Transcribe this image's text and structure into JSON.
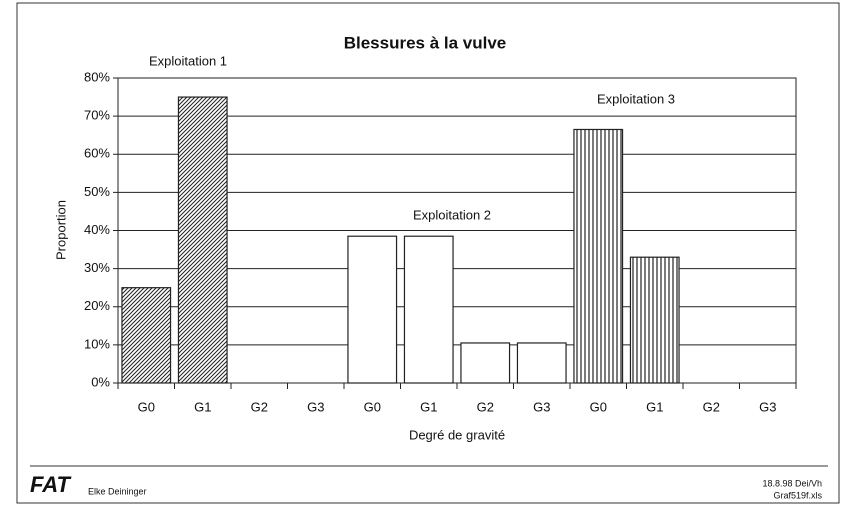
{
  "chart_data": {
    "type": "bar",
    "title": "Blessures à la vulve",
    "y_label": "Proportion",
    "x_label": "Degré de gravité",
    "ylim": [
      0,
      80
    ],
    "yticks": [
      {
        "value": 0,
        "label": "0%"
      },
      {
        "value": 10,
        "label": "10%"
      },
      {
        "value": 20,
        "label": "20%"
      },
      {
        "value": 30,
        "label": "30%"
      },
      {
        "value": 40,
        "label": "40%"
      },
      {
        "value": 50,
        "label": "50%"
      },
      {
        "value": 60,
        "label": "60%"
      },
      {
        "value": 70,
        "label": "70%"
      },
      {
        "value": 80,
        "label": "80%"
      }
    ],
    "grid": true,
    "groups": [
      {
        "name": "Exploitation 1",
        "pattern": "diagonal",
        "categories": [
          "G0",
          "G1",
          "G2",
          "G3"
        ],
        "values": [
          25,
          75,
          0,
          0
        ]
      },
      {
        "name": "Exploitation 2",
        "pattern": "none",
        "categories": [
          "G0",
          "G1",
          "G2",
          "G3"
        ],
        "values": [
          38.5,
          38.5,
          10.5,
          10.5
        ]
      },
      {
        "name": "Exploitation 3",
        "pattern": "vertical",
        "categories": [
          "G0",
          "G1",
          "G2",
          "G3"
        ],
        "values": [
          66.5,
          33,
          0,
          0
        ]
      }
    ]
  },
  "footer": {
    "logo": "FAT",
    "author": "Elke Deininger",
    "date": "18.8.98 Dei/Vh",
    "file": "Graf519f.xls"
  }
}
